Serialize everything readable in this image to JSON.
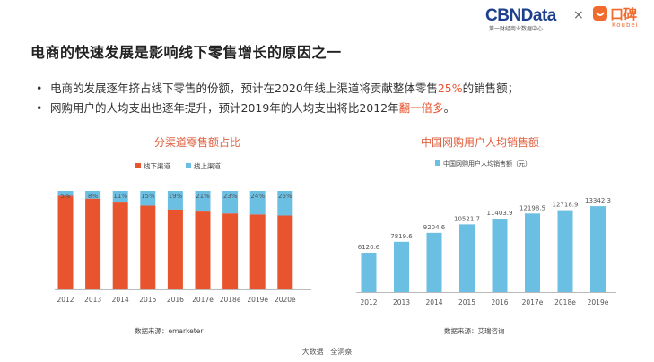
{
  "header": {
    "brand_main": "CBN",
    "brand_suffix": "Data",
    "brand_sub": "第一财经商业数据中心",
    "times": "×",
    "partner_name": "口碑",
    "partner_sub": "Koubei"
  },
  "title": "电商的快速发展是影响线下零售增长的原因之一",
  "bullets": [
    {
      "prefix": "电商的发展逐年挤占线下零售的份额，预计在2020年线上渠道将贡献整体零售",
      "highlight": "25%",
      "suffix": "的销售额；"
    },
    {
      "prefix": "网购用户的人均支出也逐年提升，预计2019年的人均支出将比2012年",
      "highlight": "翻一倍多",
      "suffix": "。"
    }
  ],
  "bullet_symbol": "•",
  "colors": {
    "offline": "#e8542e",
    "online": "#6bbfe3",
    "highlight": "#e8542e",
    "title_accent": "#e06040"
  },
  "chart_data": [
    {
      "type": "bar",
      "stacked": true,
      "title": "分渠道零售额占比",
      "categories": [
        "2012",
        "2013",
        "2014",
        "2015",
        "2016",
        "2017e",
        "2018e",
        "2019e",
        "2020e"
      ],
      "series": [
        {
          "name": "线下渠道",
          "values": [
            95,
            92,
            89,
            85,
            81,
            79,
            77,
            76,
            75
          ]
        },
        {
          "name": "线上渠道",
          "values": [
            5,
            8,
            11,
            15,
            19,
            21,
            23,
            24,
            25
          ]
        }
      ],
      "data_labels": [
        "5%",
        "8%",
        "11%",
        "15%",
        "19%",
        "21%",
        "23%",
        "24%",
        "25%"
      ],
      "ylim": [
        0,
        100
      ],
      "legend": "top-left",
      "source": "数据来源：emarketer"
    },
    {
      "type": "bar",
      "title": "中国网购用户人均销售额",
      "categories": [
        "2012",
        "2013",
        "2014",
        "2015",
        "2016",
        "2017e",
        "2018e",
        "2019e"
      ],
      "series": [
        {
          "name": "中国网购用户人均销售额（元）",
          "values": [
            6120.6,
            7819.6,
            9204.6,
            10521.7,
            11403.9,
            12198.5,
            12718.9,
            13342.3
          ]
        }
      ],
      "ylim": [
        0,
        16000
      ],
      "legend": "top-left",
      "source": "数据来源：艾瑞咨询"
    }
  ],
  "footer": "大数据 · 全洞察"
}
